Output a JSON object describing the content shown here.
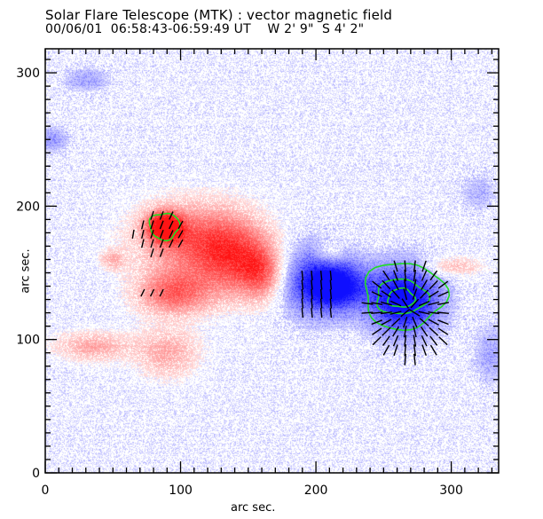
{
  "header": {
    "title": "Solar Flare Telescope (MTK) : vector magnetic field",
    "subtitle": "00/06/01  06:58:43-06:59:49 UT    W 2' 9\"  S 4' 2\""
  },
  "colors": {
    "positive_polarity": "#ff3030",
    "negative_polarity": "#2020ff",
    "contour": "#22dd22",
    "vectors": "#000000",
    "axes": "#000000"
  },
  "chart_data": {
    "type": "heatmap",
    "title": "Solar Flare Telescope (MTK) : vector magnetic field",
    "subtitle": "00/06/01  06:58:43-06:59:49 UT    W 2' 9\"  S 4' 2\"",
    "xlabel": "arc sec.",
    "ylabel": "arc sec.",
    "xlim": [
      0,
      335
    ],
    "ylim": [
      0,
      318
    ],
    "xticks": [
      0,
      100,
      200,
      300
    ],
    "yticks": [
      0,
      100,
      200,
      300
    ],
    "x_minor_step": 10,
    "y_minor_step": 10,
    "legend": "none",
    "grid": false,
    "regions": [
      {
        "polarity": "positive",
        "label": "strong positive core",
        "x": 88,
        "y": 185,
        "rx": 14,
        "ry": 12,
        "strength": 1.0
      },
      {
        "polarity": "positive",
        "label": "positive plage",
        "x": 110,
        "y": 175,
        "rx": 45,
        "ry": 30,
        "strength": 0.6
      },
      {
        "polarity": "positive",
        "label": "positive plage east",
        "x": 140,
        "y": 160,
        "rx": 30,
        "ry": 30,
        "strength": 0.55
      },
      {
        "polarity": "positive",
        "label": "positive patch south",
        "x": 95,
        "y": 135,
        "rx": 30,
        "ry": 18,
        "strength": 0.6
      },
      {
        "polarity": "positive",
        "label": "positive patch",
        "x": 160,
        "y": 150,
        "rx": 18,
        "ry": 22,
        "strength": 0.5
      },
      {
        "polarity": "positive",
        "label": "positive weak",
        "x": 35,
        "y": 95,
        "rx": 30,
        "ry": 12,
        "strength": 0.35
      },
      {
        "polarity": "positive",
        "label": "positive weak 2",
        "x": 90,
        "y": 90,
        "rx": 25,
        "ry": 20,
        "strength": 0.35
      },
      {
        "polarity": "positive",
        "label": "positive weak 3",
        "x": 210,
        "y": 165,
        "rx": 12,
        "ry": 10,
        "strength": 0.3
      },
      {
        "polarity": "positive",
        "label": "positive weak 4",
        "x": 300,
        "y": 155,
        "rx": 25,
        "ry": 8,
        "strength": 0.3
      },
      {
        "polarity": "positive",
        "label": "positive weak 5",
        "x": 50,
        "y": 160,
        "rx": 10,
        "ry": 8,
        "strength": 0.3
      },
      {
        "polarity": "negative",
        "label": "strong negative core",
        "x": 265,
        "y": 130,
        "rx": 28,
        "ry": 28,
        "strength": 1.0
      },
      {
        "polarity": "negative",
        "label": "negative plage",
        "x": 200,
        "y": 145,
        "rx": 30,
        "ry": 30,
        "strength": 0.6
      },
      {
        "polarity": "negative",
        "label": "negative bridge",
        "x": 215,
        "y": 140,
        "rx": 25,
        "ry": 18,
        "strength": 0.7
      },
      {
        "polarity": "negative",
        "label": "negative weak NW",
        "x": 5,
        "y": 250,
        "rx": 12,
        "ry": 10,
        "strength": 0.3
      },
      {
        "polarity": "negative",
        "label": "negative weak N",
        "x": 30,
        "y": 295,
        "rx": 18,
        "ry": 10,
        "strength": 0.25
      },
      {
        "polarity": "negative",
        "label": "negative weak E",
        "x": 320,
        "y": 210,
        "rx": 15,
        "ry": 15,
        "strength": 0.2
      },
      {
        "polarity": "negative",
        "label": "negative weak S",
        "x": 330,
        "y": 90,
        "rx": 15,
        "ry": 25,
        "strength": 0.25
      }
    ],
    "contours": [
      {
        "polarity": "positive",
        "level": 1,
        "center": [
          88,
          185
        ],
        "rx": 11,
        "ry": 10
      },
      {
        "polarity": "negative",
        "level": 1,
        "center": [
          265,
          133
        ],
        "rx": 30,
        "ry": 25
      },
      {
        "polarity": "negative",
        "level": 2,
        "center": [
          263,
          132
        ],
        "rx": 19,
        "ry": 13
      },
      {
        "polarity": "negative",
        "level": 3,
        "center": [
          263,
          131
        ],
        "rx": 10,
        "ry": 7
      }
    ],
    "vector_fields": [
      {
        "region": "positive core",
        "x_range": [
          65,
          105
        ],
        "y_range": [
          165,
          195
        ],
        "pattern": "diverging"
      },
      {
        "region": "positive south",
        "x_range": [
          72,
          90
        ],
        "y_range": [
          135,
          140
        ],
        "pattern": "oblique"
      },
      {
        "region": "negative core",
        "x_range": [
          238,
          300
        ],
        "y_range": [
          85,
          160
        ],
        "pattern": "converging"
      },
      {
        "region": "negative bridge",
        "x_range": [
          190,
          215
        ],
        "y_range": [
          120,
          150
        ],
        "pattern": "vertical"
      }
    ]
  }
}
